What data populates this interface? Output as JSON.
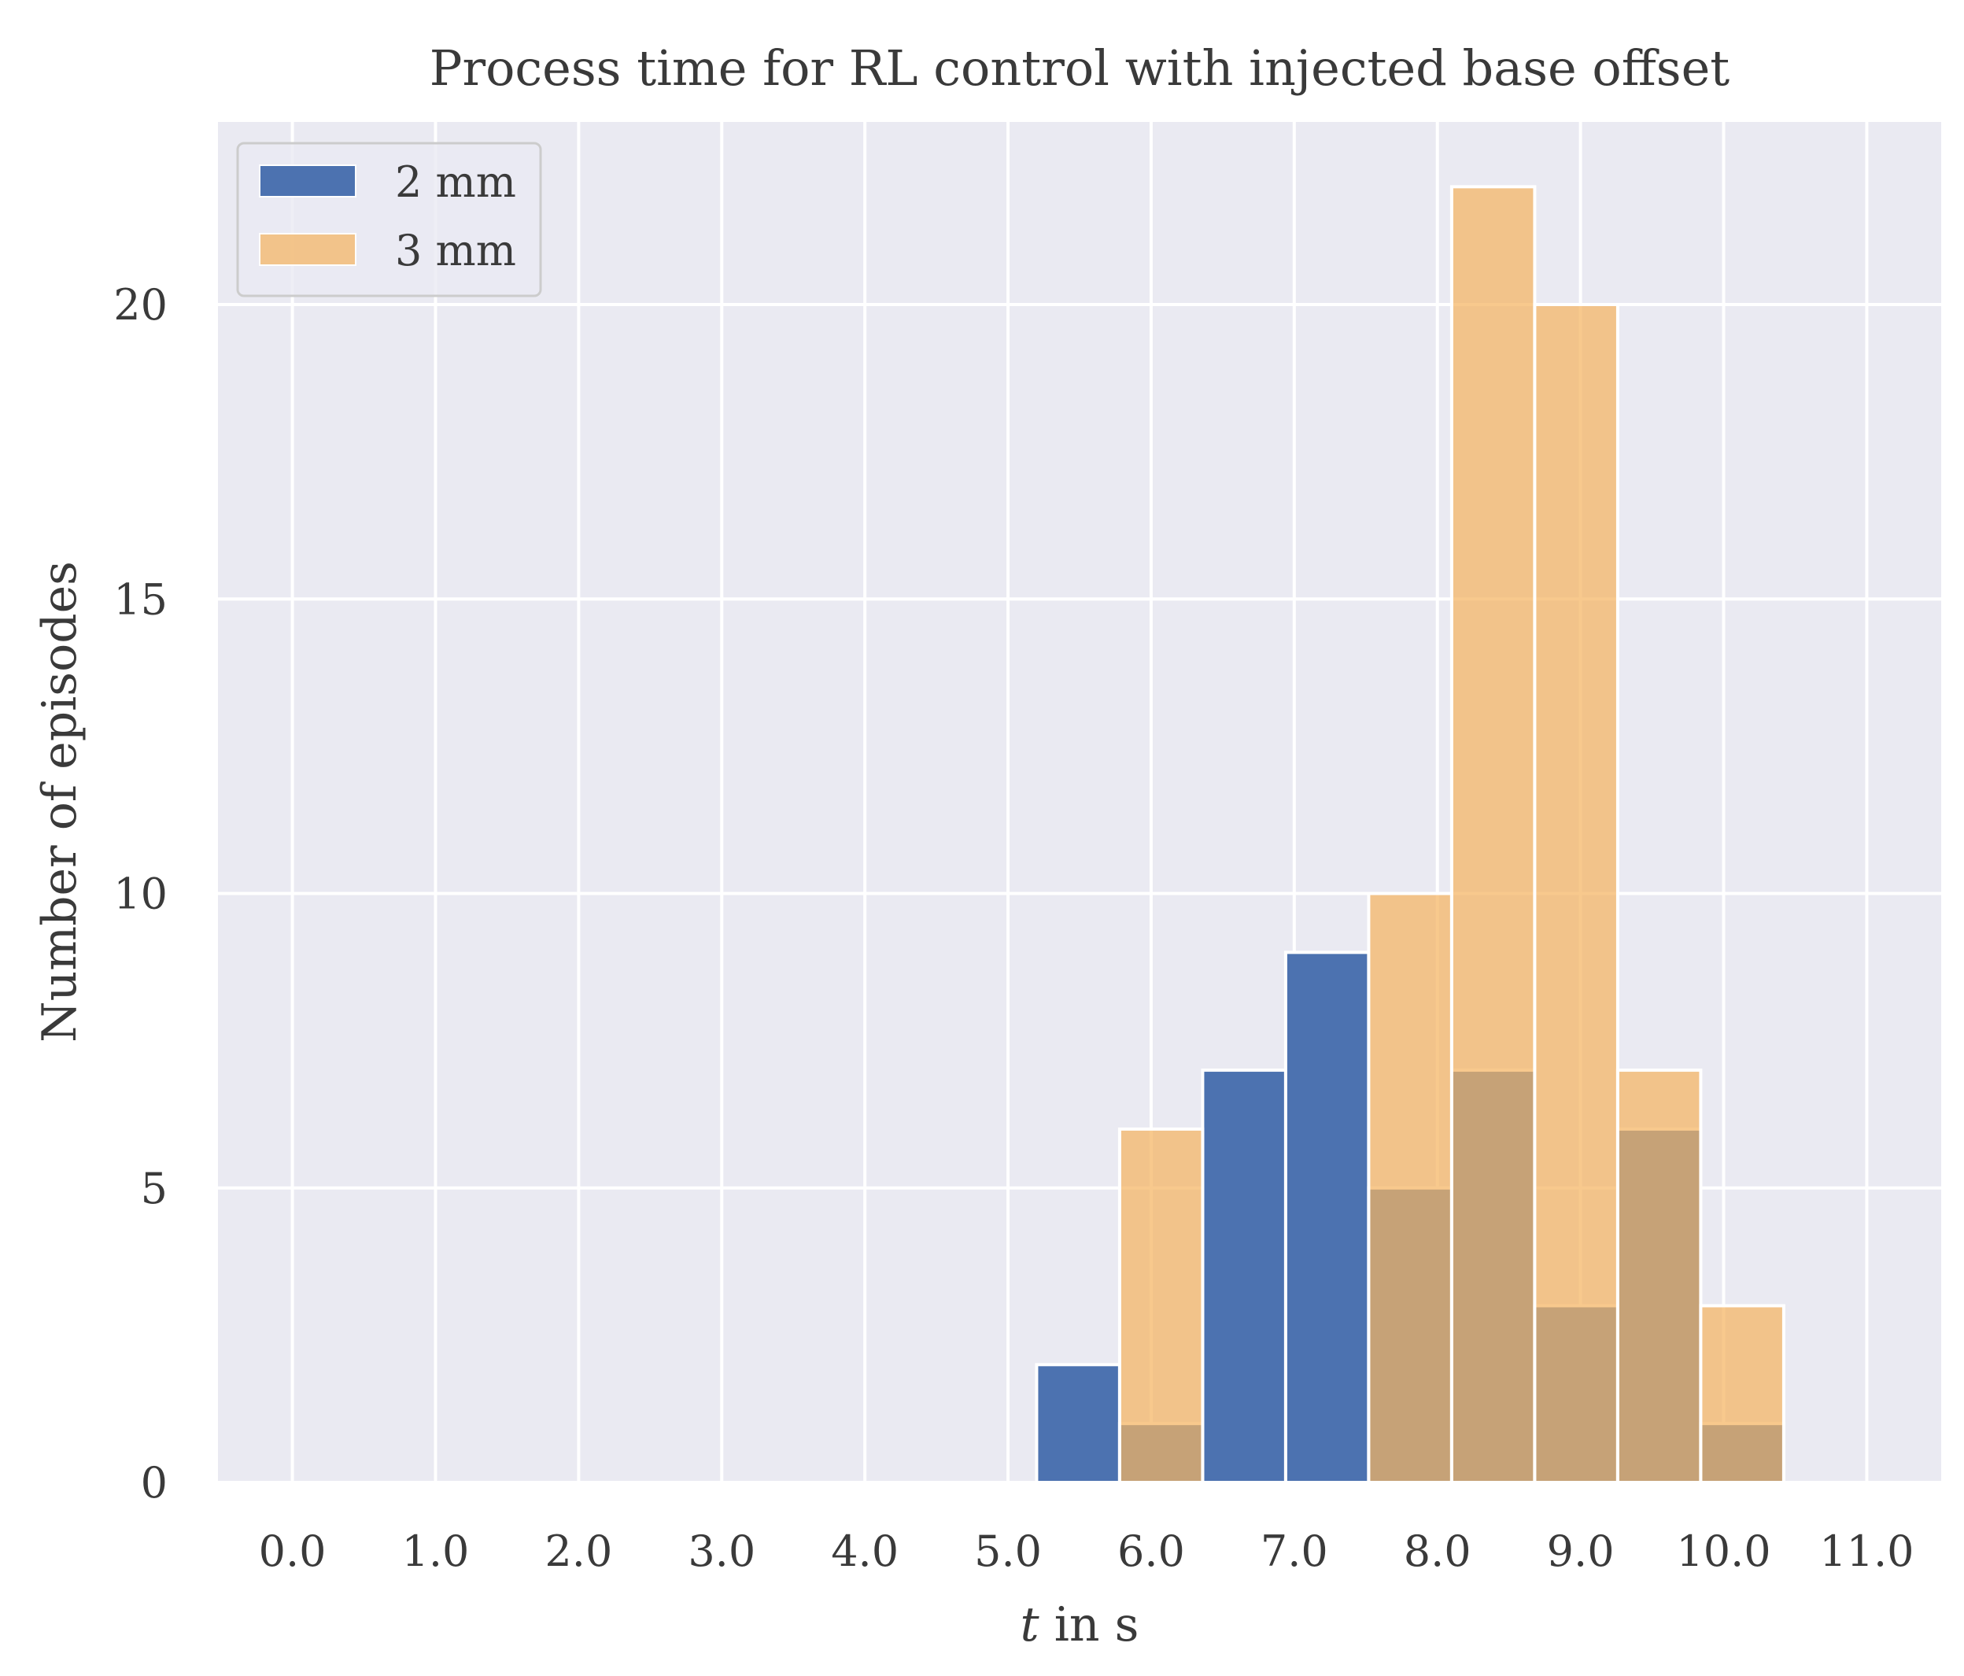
{
  "chart_data": {
    "type": "bar",
    "title": "Process time for RL control with injected base offset",
    "xlabel_var": "t",
    "xlabel_rest": " in s",
    "ylabel": "Number of episodes",
    "xlim": [
      -0.52,
      11.52
    ],
    "ylim": [
      0,
      23.1
    ],
    "x_ticks": [
      0,
      1,
      2,
      3,
      4,
      5,
      6,
      7,
      8,
      9,
      10,
      11
    ],
    "x_tick_labels": [
      "0.0",
      "1.0",
      "2.0",
      "3.0",
      "4.0",
      "5.0",
      "6.0",
      "7.0",
      "8.0",
      "9.0",
      "10.0",
      "11.0"
    ],
    "y_ticks": [
      0,
      5,
      10,
      15,
      20
    ],
    "y_tick_labels": [
      "0",
      "5",
      "10",
      "15",
      "20"
    ],
    "grid": true,
    "legend_position": "top-left",
    "bin_edges": [
      5.2,
      5.78,
      6.36,
      6.94,
      7.52,
      8.1,
      8.68,
      9.26,
      9.84,
      10.42
    ],
    "series": [
      {
        "name": "2 mm",
        "color": "#4c72b0",
        "opacity": 1.0,
        "values": [
          2,
          1,
          7,
          9,
          5,
          7,
          3,
          6,
          1
        ]
      },
      {
        "name": "3 mm",
        "color": "#f5b461",
        "opacity": 0.72,
        "values": [
          0,
          6,
          0,
          0,
          10,
          22,
          20,
          7,
          3
        ]
      }
    ],
    "colors": {
      "background": "#eaeaf2",
      "grid": "#ffffff",
      "text": "#3a3a3a"
    }
  }
}
